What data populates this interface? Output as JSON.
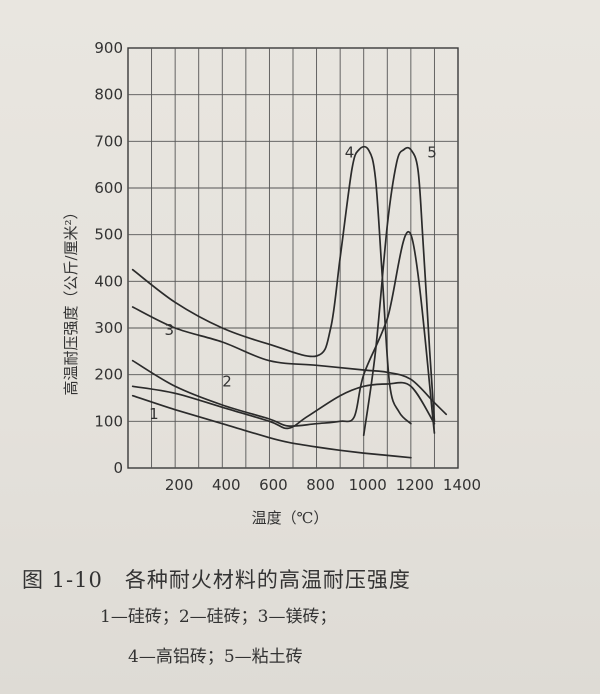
{
  "chart_data": {
    "type": "line",
    "title": "图 1-10　各种耐火材料的高温耐压强度",
    "xlabel": "温度（℃）",
    "ylabel": "高温耐压强度（公斤/厘米²）",
    "xlim": [
      0,
      1400
    ],
    "ylim": [
      0,
      900
    ],
    "xticks": [
      200,
      400,
      600,
      800,
      1000,
      1200,
      1400
    ],
    "yticks": [
      0,
      100,
      200,
      300,
      400,
      500,
      600,
      700,
      800,
      900
    ],
    "grid": true,
    "series": [
      {
        "name": "1",
        "x": [
          20,
          200,
          400,
          600,
          680,
          800,
          900,
          1000,
          1100,
          1200
        ],
        "y": [
          155,
          125,
          95,
          65,
          55,
          45,
          38,
          32,
          27,
          22
        ]
      },
      {
        "name": "1",
        "x": [
          20,
          200,
          400,
          600,
          680,
          760,
          900,
          1000,
          1100,
          1200,
          1300
        ],
        "y": [
          175,
          160,
          130,
          100,
          85,
          110,
          155,
          175,
          180,
          175,
          95
        ]
      },
      {
        "name": "2",
        "x": [
          20,
          200,
          400,
          600,
          680,
          800,
          900,
          960,
          1000,
          1100,
          1200,
          1300
        ],
        "y": [
          230,
          175,
          135,
          105,
          90,
          95,
          100,
          110,
          200,
          320,
          500,
          75
        ]
      },
      {
        "name": "3",
        "x": [
          20,
          200,
          400,
          600,
          800,
          1000,
          1100,
          1200,
          1300,
          1350
        ],
        "y": [
          345,
          300,
          270,
          230,
          220,
          210,
          205,
          190,
          140,
          115
        ]
      },
      {
        "name": "4",
        "x": [
          20,
          200,
          400,
          600,
          800,
          860,
          900,
          950,
          980,
          1020,
          1050,
          1080,
          1110,
          1150,
          1200
        ],
        "y": [
          425,
          355,
          300,
          265,
          240,
          300,
          450,
          640,
          682,
          682,
          620,
          400,
          180,
          120,
          95
        ]
      },
      {
        "name": "5",
        "x": [
          1000,
          1050,
          1100,
          1140,
          1170,
          1200,
          1230,
          1250,
          1280,
          1300
        ],
        "y": [
          70,
          250,
          520,
          655,
          682,
          682,
          640,
          500,
          250,
          100
        ]
      }
    ],
    "curve_labels": [
      {
        "text": "1",
        "x": 110,
        "y": 105
      },
      {
        "text": "2",
        "x": 420,
        "y": 175
      },
      {
        "text": "3",
        "x": 175,
        "y": 285
      },
      {
        "text": "4",
        "x": 940,
        "y": 665
      },
      {
        "text": "5",
        "x": 1290,
        "y": 665
      }
    ]
  },
  "caption": {
    "legend_line_1": "1—硅砖；2—硅砖；3—镁砖；",
    "legend_line_2": "4—高铝砖；5—粘土砖"
  }
}
